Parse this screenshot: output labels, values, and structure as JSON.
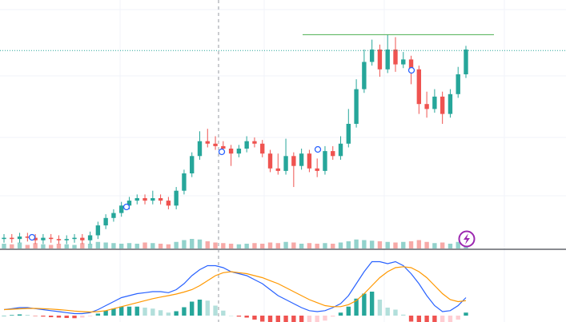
{
  "chart_data": {
    "type": "candlestick",
    "ylim": [
      0,
      100
    ],
    "up_color": "#26a69a",
    "down_color": "#ef5350",
    "open": [
      3.5,
      4,
      3.5,
      4.5,
      4,
      3,
      4,
      3.5,
      3,
      3.5,
      4,
      3,
      5,
      9,
      12,
      14,
      17,
      19,
      20,
      19,
      20,
      19,
      17,
      23,
      30,
      37,
      43,
      42,
      41,
      40,
      38,
      40,
      43,
      42,
      38,
      32,
      31,
      37,
      33,
      38,
      32,
      31,
      39,
      37,
      42,
      50,
      64,
      75,
      80,
      72,
      80,
      74,
      76,
      72,
      58,
      56,
      61,
      54,
      62,
      70
    ],
    "high": [
      5.5,
      5.5,
      6,
      6,
      5.5,
      5.5,
      5.5,
      5,
      5,
      5.5,
      5.5,
      6.5,
      10.5,
      13.5,
      15.5,
      18.5,
      20.5,
      21.5,
      21.5,
      23,
      21.5,
      20.5,
      24.5,
      31.5,
      38.5,
      47,
      48,
      45,
      43,
      41.5,
      41.5,
      45,
      44.5,
      43.5,
      39.5,
      38,
      44,
      38.5,
      40,
      39.5,
      36,
      41,
      41,
      45,
      56,
      68,
      80,
      84,
      82,
      86,
      85,
      79,
      77.5,
      73.5,
      63,
      64,
      63,
      64,
      73,
      81.5
    ],
    "low": [
      2,
      2,
      2,
      2.5,
      1.5,
      1.5,
      2,
      1.5,
      1.5,
      2,
      1.5,
      1.5,
      3.5,
      7.5,
      10.5,
      12.5,
      15.5,
      17.5,
      17.5,
      17.5,
      17.5,
      15.5,
      15.5,
      21.5,
      28.5,
      35.5,
      40.5,
      39.5,
      38.5,
      33,
      36.5,
      38.5,
      40.5,
      36.5,
      30.5,
      29.5,
      29.5,
      24.5,
      31.5,
      30.5,
      28.5,
      29.5,
      35.5,
      35.5,
      40.5,
      48.5,
      62.5,
      73.5,
      69,
      70.5,
      71,
      72.5,
      66,
      54,
      52.5,
      54.5,
      50,
      52.5,
      60.5,
      68.5
    ],
    "close": [
      4,
      3.5,
      4.5,
      4,
      3,
      4,
      3.5,
      3,
      3.5,
      4,
      3,
      5,
      9,
      12,
      14,
      17,
      19,
      20,
      19,
      20,
      19,
      17,
      23,
      30,
      37,
      43,
      42,
      41,
      40,
      38,
      40,
      43,
      42,
      38,
      32,
      31,
      37,
      33,
      38,
      32,
      31,
      39,
      37,
      42,
      50,
      64,
      75,
      80,
      72,
      80,
      74,
      76,
      72,
      58,
      56,
      61,
      54,
      62,
      70,
      80
    ],
    "volume": {
      "ylim": [
        0,
        100
      ],
      "values": [
        40,
        35,
        50,
        30,
        45,
        35,
        30,
        40,
        35,
        30,
        45,
        40,
        55,
        50,
        45,
        40,
        45,
        40,
        50,
        45,
        40,
        35,
        55,
        70,
        80,
        75,
        60,
        50,
        45,
        40,
        35,
        40,
        45,
        40,
        50,
        45,
        55,
        50,
        40,
        45,
        40,
        45,
        40,
        50,
        60,
        75,
        70,
        65,
        60,
        55,
        50,
        55,
        60,
        70,
        55,
        45,
        50,
        40,
        55,
        60
      ]
    },
    "levels": [
      {
        "value": 86,
        "color": "#4caf50",
        "style": "solid"
      },
      {
        "value": 79.6,
        "color": "#26a69a",
        "style": "dotted"
      }
    ],
    "macd": {
      "ylim": [
        -2,
        30
      ],
      "series": [
        {
          "color": "#2962ff",
          "values": [
            3,
            3.5,
            4,
            4,
            3.5,
            3,
            2.5,
            2,
            1.5,
            1,
            1,
            1.5,
            3,
            5,
            7,
            9,
            10,
            11,
            11.5,
            12,
            12,
            11.5,
            13,
            16,
            20,
            23,
            25,
            25,
            24,
            22,
            21,
            20,
            18,
            16,
            13,
            10,
            8,
            6,
            4,
            2.5,
            2,
            2.5,
            4,
            6,
            10,
            16,
            22,
            27,
            27,
            26,
            27,
            25,
            21,
            16,
            10,
            5,
            2,
            2.5,
            5,
            9
          ]
        },
        {
          "color": "#ff9800",
          "values": [
            3,
            3.2,
            3.4,
            3.6,
            3.6,
            3.5,
            3.3,
            3,
            2.7,
            2.3,
            2,
            1.8,
            2,
            2.5,
            3.5,
            4.5,
            5.5,
            6.5,
            7.5,
            8.5,
            9.3,
            10,
            10.8,
            11.8,
            13,
            15,
            17.5,
            20,
            21.5,
            22,
            21.5,
            21,
            20,
            19,
            17.5,
            16,
            14,
            12,
            10,
            8,
            6.5,
            5,
            4.5,
            4.5,
            5.5,
            7.5,
            11,
            15,
            19,
            22,
            24,
            24.5,
            24,
            22,
            19,
            15,
            11,
            8,
            7,
            7.5
          ]
        }
      ],
      "histogram": [
        0,
        0.3,
        0.6,
        0.4,
        -0.1,
        -0.5,
        -0.8,
        -1,
        -1.2,
        -1.3,
        -1,
        -0.3,
        1,
        2.5,
        3.5,
        4.5,
        4.5,
        4.5,
        4,
        3.5,
        2.7,
        1.5,
        2.2,
        4.2,
        7,
        8,
        7.5,
        5,
        2.5,
        0,
        -0.5,
        -1,
        -2,
        -3,
        -4.5,
        -6,
        -6,
        -6,
        -6,
        -5.5,
        -4.5,
        -2.5,
        -0.5,
        1.5,
        4.5,
        8.5,
        11,
        12,
        8,
        4,
        3,
        0.5,
        -3,
        -6,
        -9,
        -10,
        -9,
        -5.5,
        -2,
        1.5
      ]
    }
  }
}
